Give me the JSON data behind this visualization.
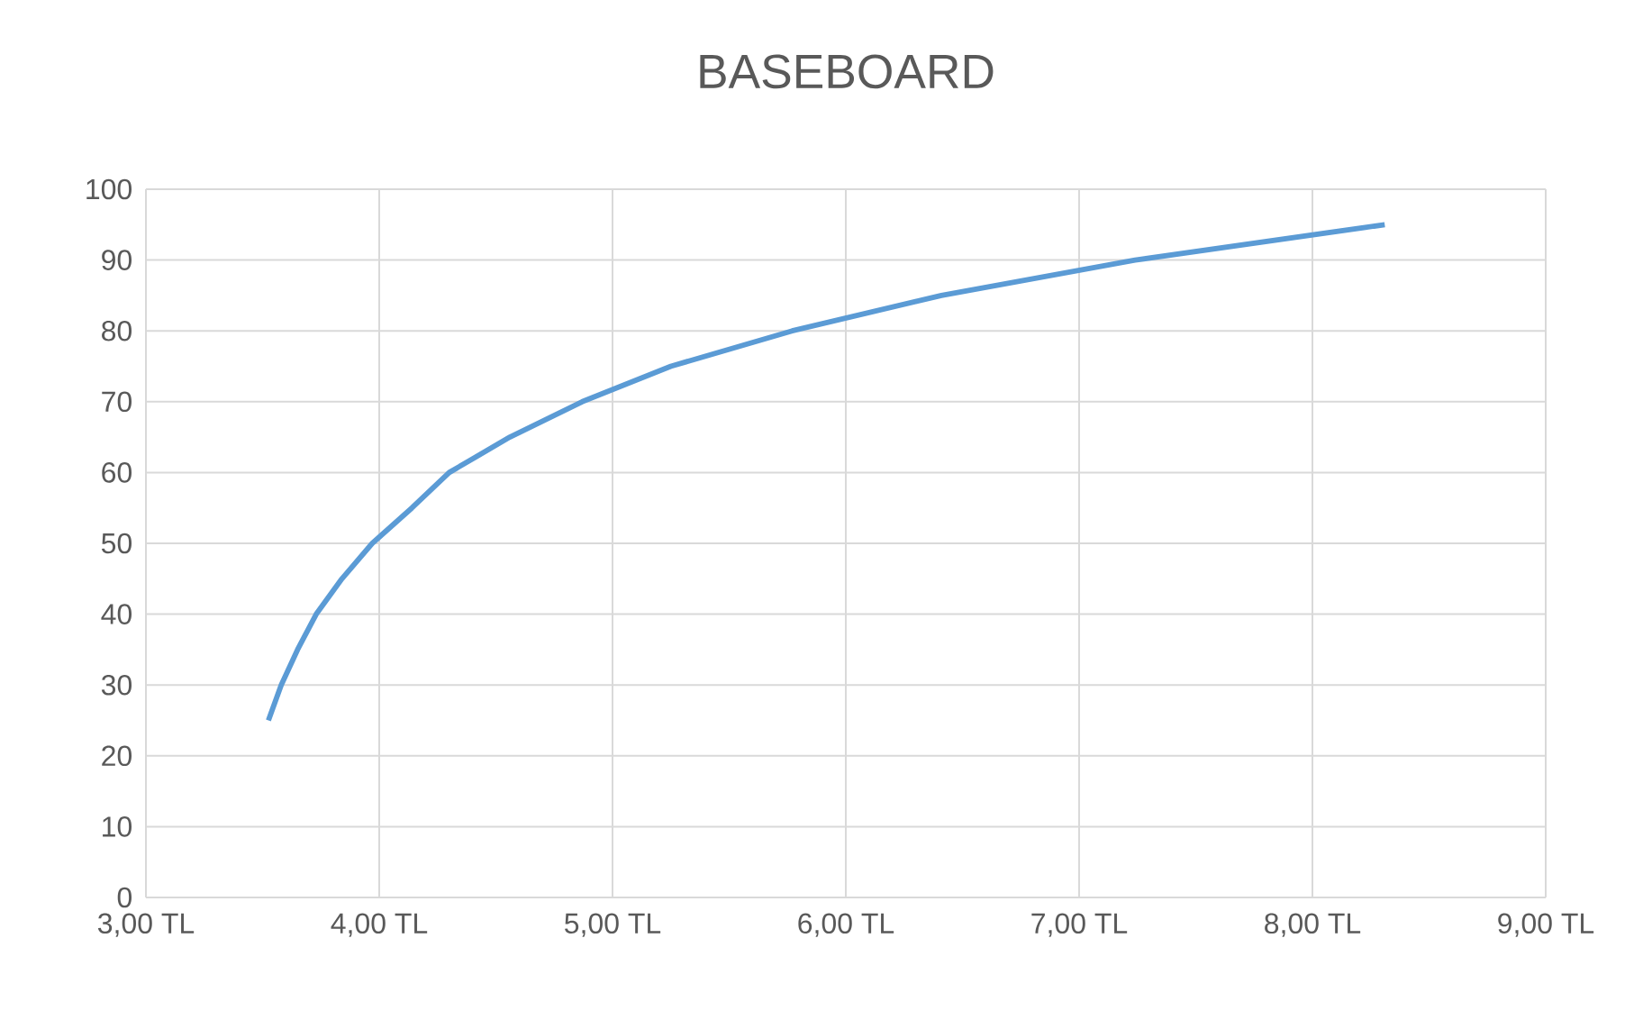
{
  "chart_data": {
    "type": "line",
    "title": "BASEBOARD",
    "x": [
      3.525,
      3.58,
      3.65,
      3.73,
      3.84,
      3.97,
      4.14,
      4.3,
      4.56,
      4.87,
      5.25,
      5.77,
      6.41,
      7.24,
      8.31
    ],
    "values": [
      25,
      30,
      35,
      40,
      45,
      50,
      55,
      60,
      65,
      70,
      75,
      80,
      85,
      90,
      95
    ],
    "color": "#5b9bd5",
    "xlim": [
      3,
      9
    ],
    "ylim": [
      0,
      100
    ],
    "xticks": [
      {
        "value": 3,
        "label": "3,00 TL"
      },
      {
        "value": 4,
        "label": "4,00 TL"
      },
      {
        "value": 5,
        "label": "5,00 TL"
      },
      {
        "value": 6,
        "label": "6,00 TL"
      },
      {
        "value": 7,
        "label": "7,00 TL"
      },
      {
        "value": 8,
        "label": "8,00 TL"
      },
      {
        "value": 9,
        "label": "9,00 TL"
      }
    ],
    "yticks": [
      0,
      10,
      20,
      30,
      40,
      50,
      60,
      70,
      80,
      90,
      100
    ],
    "grid": true
  }
}
